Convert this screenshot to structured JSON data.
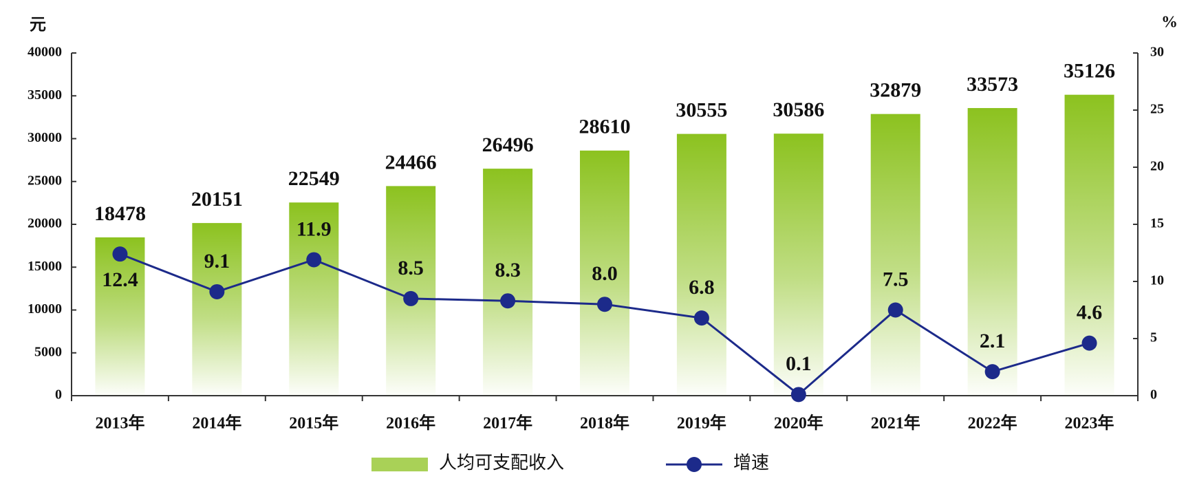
{
  "chart_data": {
    "type": "bar",
    "y_label": "元",
    "y2_label": "%",
    "categories": [
      "2013年",
      "2014年",
      "2015年",
      "2016年",
      "2017年",
      "2018年",
      "2019年",
      "2020年",
      "2021年",
      "2022年",
      "2023年"
    ],
    "series": [
      {
        "name": "人均可支配收入",
        "type": "bar",
        "color": "#8cc21f",
        "values": [
          18478,
          20151,
          22549,
          24466,
          26496,
          28610,
          30555,
          30586,
          32879,
          33573,
          35126
        ]
      },
      {
        "name": "增速",
        "type": "line",
        "axis": "y2",
        "color": "#1c2a8a",
        "values": [
          12.4,
          9.1,
          11.9,
          8.5,
          8.3,
          8.0,
          6.8,
          0.1,
          7.5,
          2.1,
          4.6
        ],
        "value_labels": [
          "12.4",
          "9.1",
          "11.9",
          "8.5",
          "8.3",
          "8.0",
          "6.8",
          "0.1",
          "7.5",
          "2.1",
          "4.6"
        ]
      }
    ],
    "ylim": [
      0,
      40000
    ],
    "yticks": [
      0,
      5000,
      10000,
      15000,
      20000,
      25000,
      30000,
      35000,
      40000
    ],
    "y2lim": [
      0,
      30
    ],
    "y2ticks": [
      0,
      5,
      10,
      15,
      20,
      25,
      30
    ],
    "legend": "bottom"
  }
}
